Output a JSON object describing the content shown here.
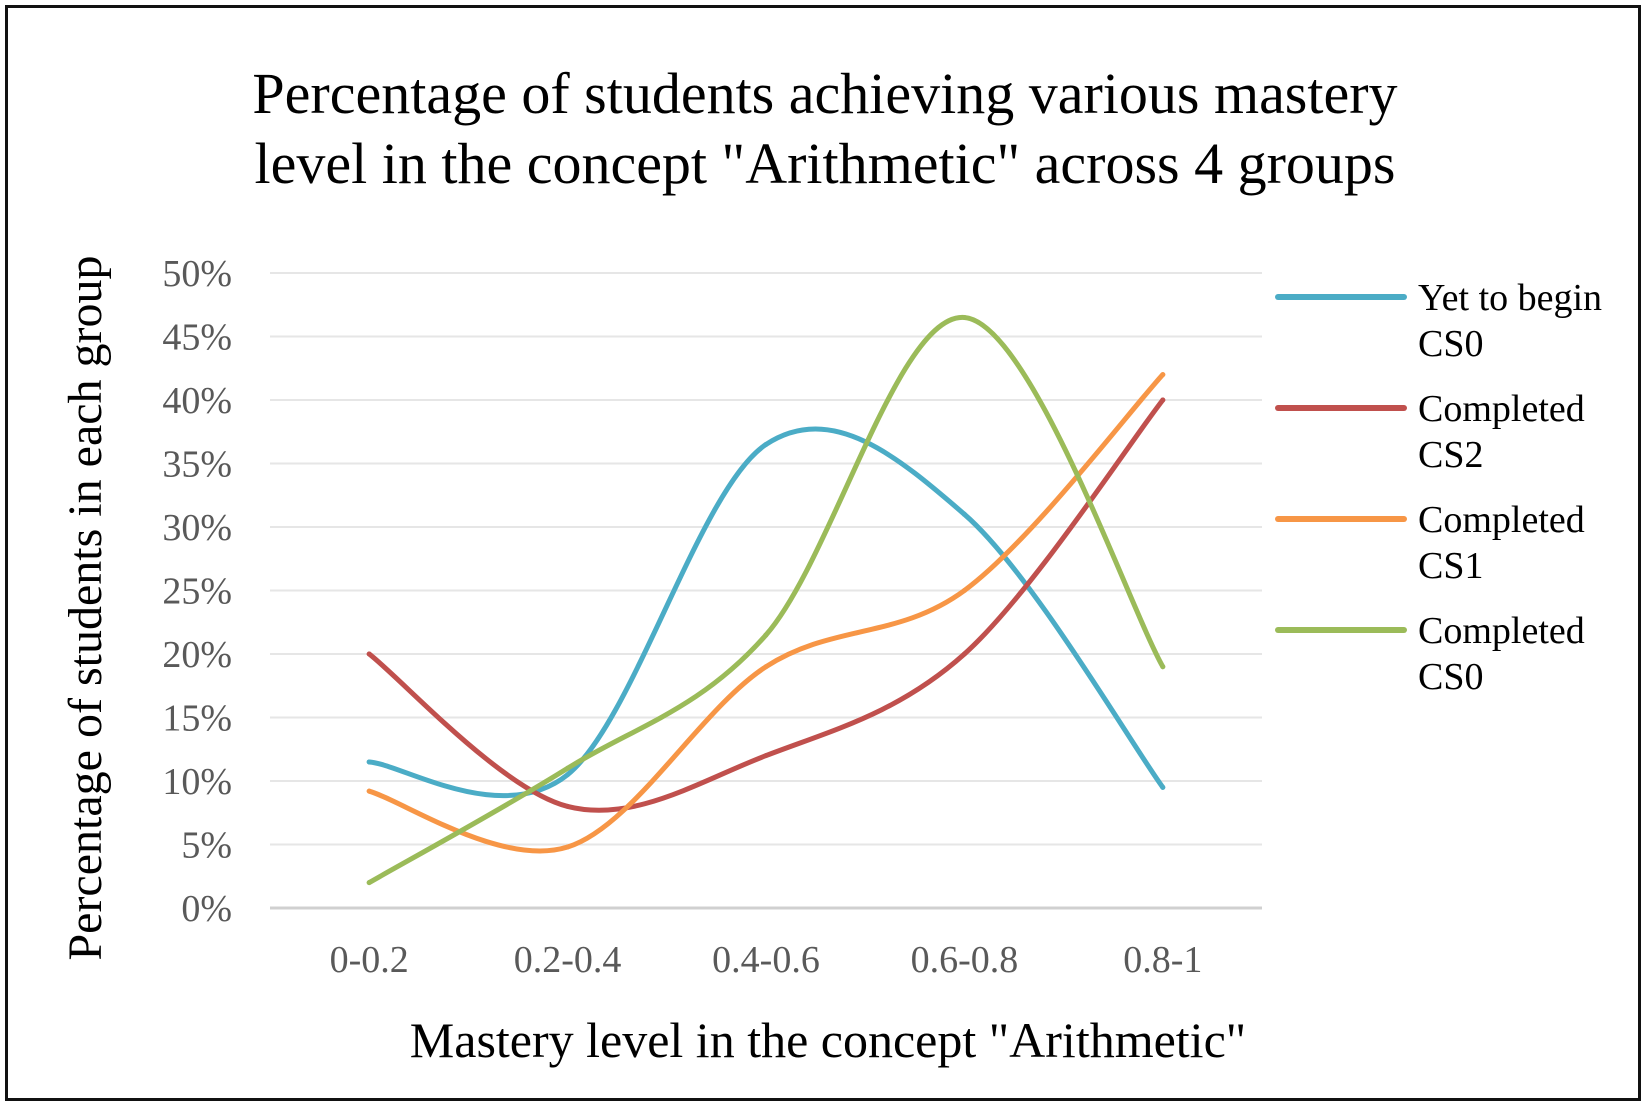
{
  "chart_data": {
    "type": "line",
    "title_lines": [
      "Percentage of students achieving various mastery",
      "level in the concept \"Arithmetic\" across 4 groups"
    ],
    "xlabel": "Mastery level in the concept \"Arithmetic\"",
    "ylabel": "Percentage of students in each group",
    "categories": [
      "0-0.2",
      "0.2-0.4",
      "0.4-0.6",
      "0.6-0.8",
      "0.8-1"
    ],
    "ylim": [
      0,
      50
    ],
    "yticks": [
      "0%",
      "5%",
      "10%",
      "15%",
      "20%",
      "25%",
      "30%",
      "35%",
      "40%",
      "45%",
      "50%"
    ],
    "grid": true,
    "smooth": true,
    "legend_position": "right",
    "series": [
      {
        "name_lines": [
          "Yet to begin",
          "CS0"
        ],
        "color": "#4bacc6",
        "values": [
          11.5,
          10.5,
          36.5,
          31,
          9.5
        ]
      },
      {
        "name_lines": [
          "Completed",
          "CS2"
        ],
        "color": "#c0504d",
        "values": [
          20,
          8,
          12,
          20,
          40
        ]
      },
      {
        "name_lines": [
          "Completed",
          "CS1"
        ],
        "color": "#f79646",
        "values": [
          9.2,
          4.8,
          19,
          25,
          42
        ]
      },
      {
        "name_lines": [
          "Completed",
          "CS0"
        ],
        "color": "#9bbb59",
        "values": [
          2,
          11,
          21.5,
          46.5,
          19
        ]
      }
    ]
  }
}
